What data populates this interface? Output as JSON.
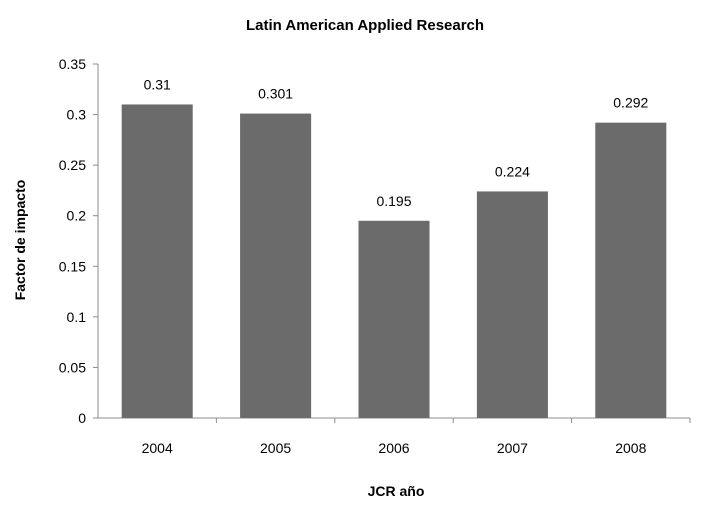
{
  "chart_data": {
    "type": "bar",
    "title": "Latin American Applied Research",
    "xlabel": "JCR año",
    "ylabel": "Factor de impacto",
    "categories": [
      "2004",
      "2005",
      "2006",
      "2007",
      "2008"
    ],
    "values": [
      0.31,
      0.301,
      0.195,
      0.224,
      0.292
    ],
    "data_labels": [
      "0.31",
      "0.301",
      "0.195",
      "0.224",
      "0.292"
    ],
    "yticks": [
      "0",
      "0.05",
      "0.1",
      "0.15",
      "0.2",
      "0.25",
      "0.3",
      "0.35"
    ],
    "ylim": [
      0,
      0.35
    ],
    "bar_color": "#6b6b6b",
    "grid": false,
    "legend": false
  }
}
